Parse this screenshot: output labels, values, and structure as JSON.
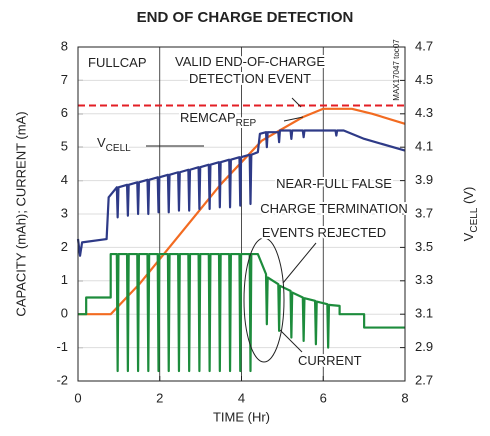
{
  "chart_data": {
    "type": "line",
    "title": "END OF CHARGE DETECTION",
    "x_label": "TIME (Hr)",
    "y_label": "CAPACITY (mAh); CURRENT (mA)",
    "y2_label": {
      "text": "V",
      "sub": "CELL",
      "after": " (V)"
    },
    "xlim": [
      0,
      8
    ],
    "xticks": [
      0,
      2,
      4,
      6,
      8
    ],
    "ylim": [
      -2,
      8
    ],
    "yticks": [
      -2,
      -1,
      0,
      1,
      2,
      3,
      4,
      5,
      6,
      7,
      8
    ],
    "y2lim": [
      2.7,
      4.7
    ],
    "y2ticks": [
      2.7,
      2.9,
      3.1,
      3.3,
      3.5,
      3.7,
      3.9,
      4.1,
      4.3,
      4.5,
      4.7
    ],
    "grid": true,
    "series": [
      {
        "name": "FULLCAP",
        "color": "#e31e24",
        "dashed": true,
        "x": [
          0,
          8
        ],
        "values": [
          6.25,
          6.25
        ]
      },
      {
        "name": "REMCAP",
        "color": "#f26b21",
        "x": [
          0,
          0.8,
          1.5,
          2.5,
          3.5,
          4.5,
          5.5,
          6.0,
          6.7,
          7.2,
          8
        ],
        "values": [
          0,
          0,
          0.9,
          2.4,
          3.9,
          5.2,
          5.9,
          6.15,
          6.15,
          6.0,
          5.7
        ]
      },
      {
        "name": "VCELL",
        "color": "#2e3a87",
        "axis": "y2",
        "x": [
          0,
          0.05,
          0.1,
          0.7,
          0.75,
          0.95,
          0.97,
          0.99,
          1.2,
          1.22,
          1.24,
          1.45,
          1.47,
          1.49,
          1.7,
          1.72,
          1.74,
          1.95,
          1.97,
          1.99,
          2.2,
          2.22,
          2.24,
          2.45,
          2.47,
          2.49,
          2.7,
          2.72,
          2.74,
          2.95,
          2.97,
          2.99,
          3.2,
          3.22,
          3.24,
          3.45,
          3.47,
          3.49,
          3.7,
          3.72,
          3.74,
          3.95,
          3.97,
          3.99,
          4.2,
          4.22,
          4.24,
          4.4,
          4.45,
          4.6,
          4.62,
          4.64,
          4.9,
          4.92,
          4.94,
          5.2,
          5.22,
          5.24,
          5.5,
          5.52,
          5.54,
          6.3,
          6.32,
          6.34,
          6.5,
          7,
          8
        ],
        "values": [
          3.55,
          3.45,
          3.53,
          3.55,
          3.8,
          3.86,
          3.68,
          3.86,
          3.875,
          3.69,
          3.875,
          3.89,
          3.7,
          3.89,
          3.905,
          3.7,
          3.905,
          3.92,
          3.71,
          3.92,
          3.935,
          3.71,
          3.935,
          3.95,
          3.72,
          3.95,
          3.965,
          3.72,
          3.965,
          3.98,
          3.73,
          3.98,
          3.995,
          3.73,
          3.995,
          4.01,
          3.74,
          4.01,
          4.025,
          3.74,
          4.025,
          4.04,
          3.75,
          4.04,
          4.055,
          3.76,
          4.055,
          4.07,
          4.18,
          4.19,
          4.1,
          4.19,
          4.19,
          4.13,
          4.2,
          4.2,
          4.15,
          4.2,
          4.2,
          4.16,
          4.2,
          4.2,
          4.17,
          4.2,
          4.2,
          4.15,
          4.08
        ]
      },
      {
        "name": "CURRENT",
        "color": "#1d8c3c",
        "x": [
          0,
          0.2,
          0.2,
          0.8,
          0.8,
          0.95,
          0.97,
          0.99,
          1.2,
          1.22,
          1.24,
          1.45,
          1.47,
          1.49,
          1.7,
          1.72,
          1.74,
          1.95,
          1.97,
          1.99,
          2.2,
          2.22,
          2.24,
          2.45,
          2.47,
          2.49,
          2.7,
          2.72,
          2.74,
          2.95,
          2.97,
          2.99,
          3.2,
          3.22,
          3.24,
          3.45,
          3.47,
          3.49,
          3.7,
          3.72,
          3.74,
          3.95,
          3.97,
          3.99,
          4.2,
          4.22,
          4.24,
          4.4,
          4.6,
          4.62,
          4.64,
          4.9,
          4.92,
          4.94,
          5.2,
          5.22,
          5.24,
          5.5,
          5.52,
          5.54,
          5.8,
          5.82,
          5.84,
          6.1,
          6.12,
          6.14,
          6.4,
          6.4,
          7.0,
          7.0,
          8
        ],
        "values": [
          0,
          0,
          0.5,
          0.5,
          1.8,
          1.8,
          -1.7,
          1.8,
          1.8,
          -1.7,
          1.8,
          1.8,
          -1.7,
          1.8,
          1.8,
          -1.7,
          1.8,
          1.8,
          -1.7,
          1.8,
          1.8,
          -1.7,
          1.8,
          1.8,
          -1.7,
          1.8,
          1.8,
          -1.7,
          1.8,
          1.8,
          -1.7,
          1.8,
          1.8,
          -1.7,
          1.8,
          1.8,
          -1.7,
          1.8,
          1.8,
          -1.7,
          1.8,
          1.8,
          -1.7,
          1.8,
          1.8,
          -1.7,
          1.8,
          1.8,
          1.2,
          -0.3,
          1.1,
          0.9,
          -0.5,
          0.85,
          0.7,
          -0.7,
          0.65,
          0.5,
          -0.8,
          0.48,
          0.4,
          -0.9,
          0.38,
          0.3,
          -1.0,
          0.28,
          0.25,
          0,
          0,
          -0.4,
          -0.4
        ]
      }
    ],
    "annotations": [
      {
        "text": "FULLCAP"
      },
      {
        "text": "VALID END-OF-CHARGE"
      },
      {
        "text": "DETECTION EVENT"
      },
      {
        "text": "REMCAP",
        "sub": "REP"
      },
      {
        "text": "V",
        "sub": "CELL"
      },
      {
        "text": "NEAR-FULL FALSE"
      },
      {
        "text": "CHARGE TERMINATION"
      },
      {
        "text": "EVENTS REJECTED"
      },
      {
        "text": "CURRENT"
      },
      {
        "text": "MAX17047 toc07"
      }
    ]
  }
}
